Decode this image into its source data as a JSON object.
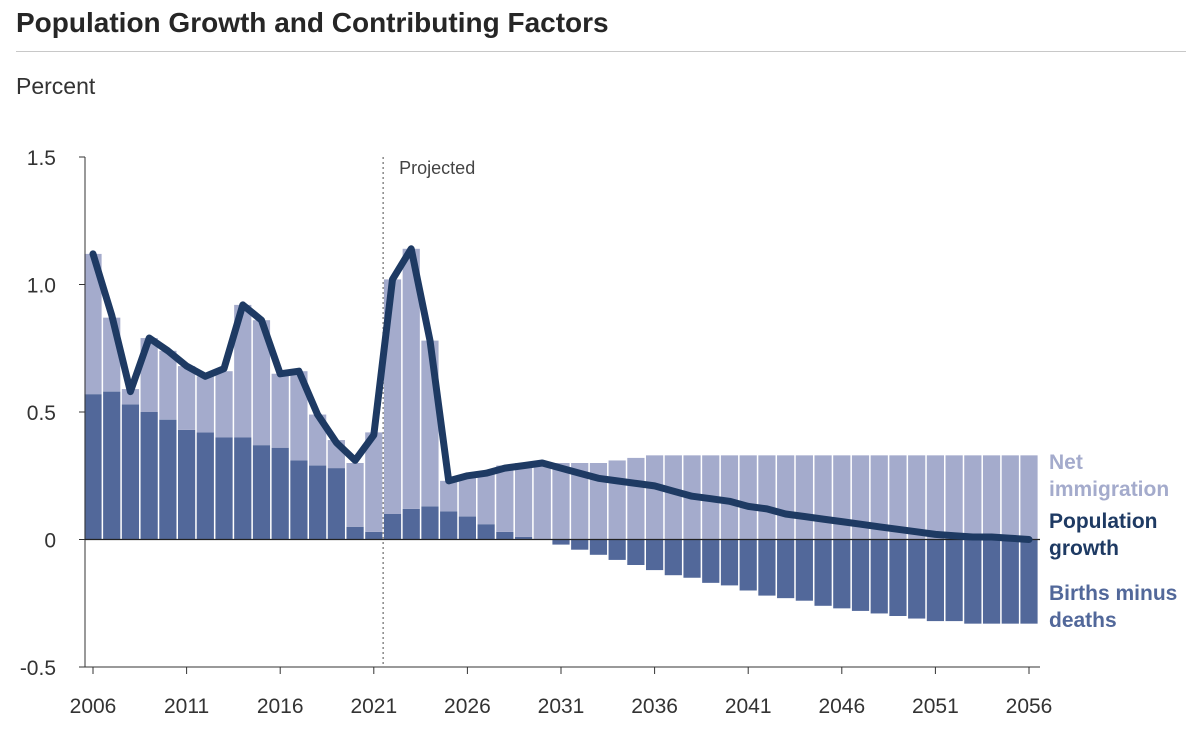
{
  "page": {
    "title": "Population Growth and Contributing Factors",
    "unit_label": "Percent"
  },
  "colors": {
    "net_immigration": "#a4abcc",
    "births_minus_deaths": "#52689a",
    "population_growth": "#1e3a63",
    "axis": "#333333",
    "projection_line": "#888888"
  },
  "chart_data": {
    "type": "bar",
    "stacked": true,
    "ylim": [
      -0.5,
      1.5
    ],
    "yticks": [
      1.5,
      1.0,
      0.5,
      0,
      -0.5
    ],
    "ytick_labels": [
      "1.5",
      "1.0",
      "0.5",
      "0",
      "-0.5"
    ],
    "xtick_labels": [
      "2006",
      "2011",
      "2016",
      "2021",
      "2026",
      "2031",
      "2036",
      "2041",
      "2046",
      "2051",
      "2056"
    ],
    "projected_start_year": 2021.5,
    "projected_label": "Projected",
    "years": [
      2006,
      2007,
      2008,
      2009,
      2010,
      2011,
      2012,
      2013,
      2014,
      2015,
      2016,
      2017,
      2018,
      2019,
      2020,
      2021,
      2022,
      2023,
      2024,
      2025,
      2026,
      2027,
      2028,
      2029,
      2030,
      2031,
      2032,
      2033,
      2034,
      2035,
      2036,
      2037,
      2038,
      2039,
      2040,
      2041,
      2042,
      2043,
      2044,
      2045,
      2046,
      2047,
      2048,
      2049,
      2050,
      2051,
      2052,
      2053,
      2054,
      2055,
      2056
    ],
    "series": [
      {
        "name": "Births minus deaths",
        "legend": [
          "Births minus",
          "deaths"
        ],
        "values": [
          0.57,
          0.58,
          0.53,
          0.5,
          0.47,
          0.43,
          0.42,
          0.4,
          0.4,
          0.37,
          0.36,
          0.31,
          0.29,
          0.28,
          0.05,
          0.03,
          0.1,
          0.12,
          0.13,
          0.11,
          0.09,
          0.06,
          0.03,
          0.01,
          0.0,
          -0.02,
          -0.04,
          -0.06,
          -0.08,
          -0.1,
          -0.12,
          -0.14,
          -0.15,
          -0.17,
          -0.18,
          -0.2,
          -0.22,
          -0.23,
          -0.24,
          -0.26,
          -0.27,
          -0.28,
          -0.29,
          -0.3,
          -0.31,
          -0.32,
          -0.32,
          -0.33,
          -0.33,
          -0.33,
          -0.33
        ]
      },
      {
        "name": "Net immigration",
        "legend": [
          "Net",
          "immigration"
        ],
        "values": [
          0.55,
          0.29,
          0.06,
          0.29,
          0.27,
          0.25,
          0.22,
          0.26,
          0.52,
          0.49,
          0.29,
          0.35,
          0.2,
          0.11,
          0.25,
          0.39,
          0.92,
          1.02,
          0.65,
          0.12,
          0.16,
          0.2,
          0.26,
          0.29,
          0.3,
          0.3,
          0.3,
          0.3,
          0.31,
          0.32,
          0.33,
          0.33,
          0.33,
          0.33,
          0.33,
          0.33,
          0.33,
          0.33,
          0.33,
          0.33,
          0.33,
          0.33,
          0.33,
          0.33,
          0.33,
          0.33,
          0.33,
          0.33,
          0.33,
          0.33,
          0.33
        ]
      },
      {
        "name": "Population growth",
        "legend": [
          "Population",
          "growth"
        ],
        "type": "line",
        "values": [
          1.12,
          0.88,
          0.58,
          0.79,
          0.74,
          0.68,
          0.64,
          0.67,
          0.92,
          0.86,
          0.65,
          0.66,
          0.49,
          0.38,
          0.31,
          0.41,
          1.02,
          1.14,
          0.78,
          0.23,
          0.25,
          0.26,
          0.28,
          0.29,
          0.3,
          0.28,
          0.26,
          0.24,
          0.23,
          0.22,
          0.21,
          0.19,
          0.17,
          0.16,
          0.15,
          0.13,
          0.12,
          0.1,
          0.09,
          0.08,
          0.07,
          0.06,
          0.05,
          0.04,
          0.03,
          0.02,
          0.015,
          0.01,
          0.01,
          0.005,
          0.0
        ]
      }
    ]
  }
}
